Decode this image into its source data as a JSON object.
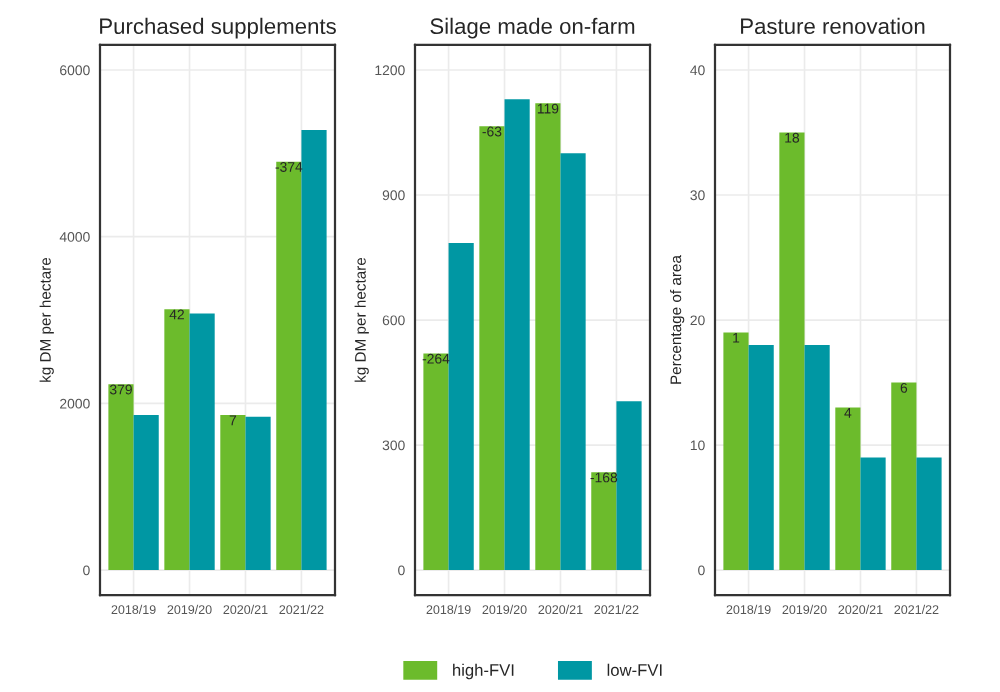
{
  "chart_data": [
    {
      "type": "bar",
      "title": "Purchased supplements",
      "ylabel": "kg DM per hectare",
      "categories": [
        "2018/19",
        "2019/20",
        "2020/21",
        "2021/22"
      ],
      "series": [
        {
          "color": "#6cbb2c",
          "values": [
            2230,
            3130,
            1860,
            4900
          ]
        },
        {
          "color": "#0097a3",
          "values": [
            1860,
            3080,
            1840,
            5280
          ]
        }
      ],
      "ylim": [
        -300,
        6300
      ],
      "yticks": [
        0,
        2000,
        4000,
        6000
      ],
      "grid": true,
      "annotations": [
        {
          "text": "379",
          "x": "2018/19",
          "y": 2230
        },
        {
          "text": "42",
          "x": "2019/20",
          "y": 3130
        },
        {
          "text": "7",
          "x": "2020/21",
          "y": 1860
        },
        {
          "text": "-374",
          "x": "2021/22",
          "y": 4900
        }
      ]
    },
    {
      "type": "bar",
      "title": "Silage made on-farm",
      "ylabel": "kg DM per hectare",
      "categories": [
        "2018/19",
        "2019/20",
        "2020/21",
        "2021/22"
      ],
      "series": [
        {
          "name": "high-FVI",
          "color": "#6cbb2c",
          "values": [
            520,
            1065,
            1120,
            235
          ]
        },
        {
          "name": "low-FVI",
          "color": "#0097a3",
          "values": [
            785,
            1130,
            1000,
            405
          ]
        }
      ],
      "ylim": [
        -60,
        1260
      ],
      "yticks": [
        0,
        300,
        600,
        900,
        1200
      ],
      "grid": true,
      "legend": "bottom",
      "annotations": [
        {
          "text": "-264",
          "x": "2018/19",
          "y": 520
        },
        {
          "text": "-63",
          "x": "2019/20",
          "y": 1065
        },
        {
          "text": "119",
          "x": "2020/21",
          "y": 1120
        },
        {
          "text": "-168",
          "x": "2021/22",
          "y": 235
        }
      ]
    },
    {
      "type": "bar",
      "title": "Pasture renovation",
      "ylabel": "Percentage of area",
      "categories": [
        "2018/19",
        "2019/20",
        "2020/21",
        "2021/22"
      ],
      "series": [
        {
          "color": "#6cbb2c",
          "values": [
            19,
            35,
            13,
            15
          ]
        },
        {
          "color": "#0097a3",
          "values": [
            18,
            18,
            9,
            9
          ]
        }
      ],
      "ylim": [
        -2,
        42
      ],
      "yticks": [
        0,
        10,
        20,
        30,
        40
      ],
      "grid": true,
      "annotations": [
        {
          "text": "1",
          "x": "2018/19",
          "y": 19
        },
        {
          "text": "18",
          "x": "2019/20",
          "y": 35
        },
        {
          "text": "4",
          "x": "2020/21",
          "y": 13
        },
        {
          "text": "6",
          "x": "2021/22",
          "y": 15
        }
      ]
    }
  ]
}
